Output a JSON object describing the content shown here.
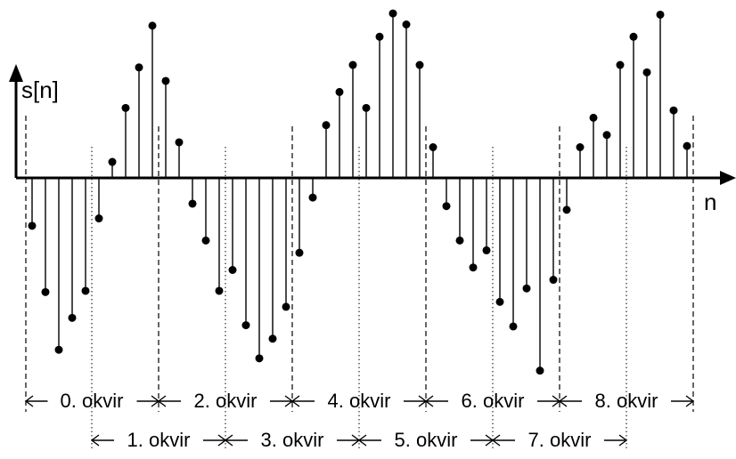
{
  "axes": {
    "y_label": "s[n]",
    "x_label": "n"
  },
  "frames": {
    "top_row": [
      "0. okvir",
      "2. okvir",
      "4. okvir",
      "6. okvir",
      "8. okvir"
    ],
    "bottom_row": [
      "1. okvir",
      "3. okvir",
      "5. okvir",
      "7. okvir"
    ]
  },
  "chart_data": {
    "type": "stem",
    "x": [
      0,
      1,
      2,
      3,
      4,
      5,
      6,
      7,
      8,
      9,
      10,
      11,
      12,
      13,
      14,
      15,
      16,
      17,
      18,
      19,
      20,
      21,
      22,
      23,
      24,
      25,
      26,
      27,
      28,
      29,
      30,
      31,
      32,
      33,
      34,
      35,
      36,
      37,
      38,
      39,
      40,
      41,
      42,
      43,
      44,
      45,
      46,
      47,
      48,
      49
    ],
    "y": [
      -0.39,
      -0.93,
      -1.4,
      -1.14,
      -0.92,
      -0.33,
      0.13,
      0.57,
      0.9,
      1.24,
      0.79,
      0.29,
      -0.21,
      -0.51,
      -0.92,
      -0.75,
      -1.2,
      -1.47,
      -1.31,
      -1.05,
      -0.61,
      -0.16,
      0.43,
      0.7,
      0.92,
      0.57,
      1.15,
      1.34,
      1.25,
      0.92,
      0.25,
      -0.23,
      -0.51,
      -0.73,
      -0.59,
      -1.01,
      -1.21,
      -0.9,
      -1.57,
      -0.83,
      -0.26,
      0.25,
      0.49,
      0.35,
      0.92,
      1.15,
      0.86,
      1.33,
      0.55,
      0.26
    ]
  }
}
